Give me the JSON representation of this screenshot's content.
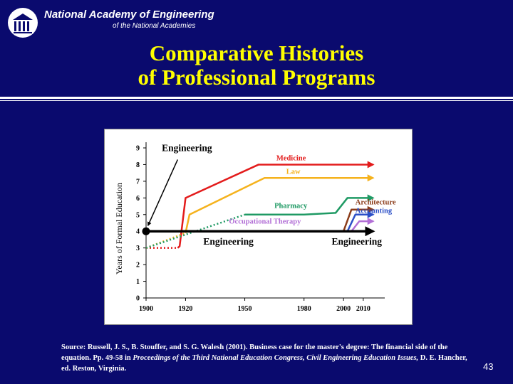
{
  "header": {
    "org_name": "National Academy of Engineering",
    "org_sub": "of the National Academies"
  },
  "title": {
    "line1": "Comparative Histories",
    "line2": "of Professional Programs"
  },
  "colors": {
    "background": "#0a0a6e",
    "title": "#ffff00",
    "engineering": "#000000",
    "medicine": "#e31b1b",
    "law": "#f5b21c",
    "pharmacy": "#1f9a64",
    "architecture": "#8b3c1a",
    "accounting": "#2b4fc7",
    "occupational_therapy": "#b26fd6"
  },
  "chart_data": {
    "type": "line",
    "ylabel": "Years of Formal Education",
    "xlabel": "",
    "x_ticks": [
      "1900",
      "1920",
      "1950",
      "1980",
      "2000",
      "2010"
    ],
    "y_ticks": [
      "0",
      "1",
      "2",
      "3",
      "4",
      "5",
      "6",
      "7",
      "8",
      "9"
    ],
    "xlim": [
      1900,
      2018
    ],
    "ylim": [
      0,
      9
    ],
    "series": [
      {
        "name": "Medicine",
        "color": "#e31b1b",
        "x": [
          1900,
          1916,
          1917,
          1920,
          1957,
          2015
        ],
        "y": [
          3,
          3,
          3.1,
          6,
          8,
          8
        ],
        "dotted_until": 1
      },
      {
        "name": "Law",
        "color": "#f5b21c",
        "x": [
          1900,
          1920,
          1922,
          1960,
          2015
        ],
        "y": [
          3,
          3.9,
          5,
          7.2,
          7.2
        ],
        "dotted_until": 1
      },
      {
        "name": "Pharmacy",
        "color": "#1f9a64",
        "x": [
          1900,
          1950,
          1980,
          1996,
          2002,
          2015
        ],
        "y": [
          3,
          5,
          5,
          5.1,
          6,
          6
        ],
        "dotted_until": 1
      },
      {
        "name": "Architecture",
        "color": "#8b3c1a",
        "x": [
          1983,
          2000,
          2004,
          2015
        ],
        "y": [
          4,
          4,
          5.3,
          5.3
        ],
        "dotted_until": 0
      },
      {
        "name": "Accounting",
        "color": "#2b4fc7",
        "x": [
          1985,
          2002,
          2006,
          2015
        ],
        "y": [
          4,
          4,
          5,
          5
        ],
        "dotted_until": 0
      },
      {
        "name": "Occupational Therapy",
        "color": "#b26fd6",
        "x": [
          1990,
          2004,
          2008,
          2015
        ],
        "y": [
          4,
          4,
          4.6,
          4.6
        ],
        "dotted_until": 0
      },
      {
        "name": "Engineering",
        "color": "#000000",
        "x": [
          1900,
          2015
        ],
        "y": [
          4,
          4
        ],
        "dotted_until": 0
      }
    ],
    "annotations": [
      {
        "text": "Engineering",
        "color": "#000000",
        "x": 1908,
        "y": 8.8
      },
      {
        "text": "Medicine",
        "color": "#e31b1b",
        "x": 1966,
        "y": 8.25
      },
      {
        "text": "Law",
        "color": "#f5b21c",
        "x": 1971,
        "y": 7.45
      },
      {
        "text": "Pharmacy",
        "color": "#1f9a64",
        "x": 1965,
        "y": 5.4
      },
      {
        "text": "Architecture",
        "color": "#8b3c1a",
        "x": 2006,
        "y": 5.6
      },
      {
        "text": "Accounting",
        "color": "#2b4fc7",
        "x": 2006,
        "y": 5.1
      },
      {
        "text": "Occupational Therapy",
        "color": "#b26fd6",
        "x": 1942,
        "y": 4.45
      },
      {
        "text": "Engineering",
        "color": "#000000",
        "x": 1929,
        "y": 3.2
      },
      {
        "text": "Engineering",
        "color": "#000000",
        "x": 1994,
        "y": 3.2
      }
    ],
    "grid": false,
    "legend": "none"
  },
  "source": {
    "prefix": "Source: Russell, J. S., B. Stouffer, and S. G. Walesh (2001). Business case for the master's degree: The financial side of the equation. Pp. 49-58 in ",
    "italic": "Proceedings of the Third National Education Congress, Civil Engineering Education Issues,",
    "suffix": " D. E. Hancher, ed. Reston, Virginia."
  },
  "page_number": "43"
}
